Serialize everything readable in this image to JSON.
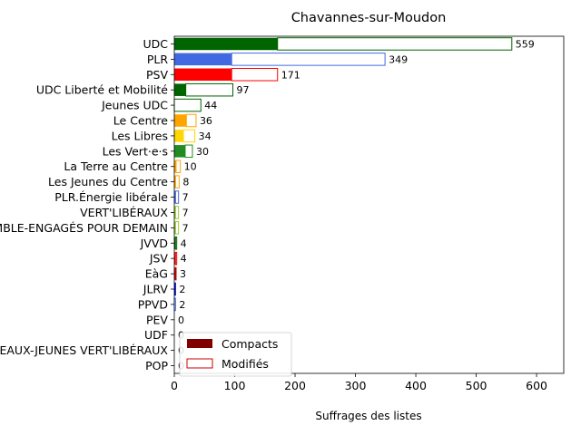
{
  "chart_data": {
    "type": "bar",
    "orientation": "horizontal",
    "title": "Chavannes-sur-Moudon",
    "xlabel": "Suffrages des listes",
    "ylabel": "",
    "xlim": [
      0,
      645
    ],
    "xticks": [
      0,
      100,
      200,
      300,
      400,
      500,
      600
    ],
    "grid": false,
    "legend_position": "lower-left",
    "legend": [
      {
        "label": "Compacts",
        "style": "filled",
        "color": "#800000"
      },
      {
        "label": "Modifiés",
        "style": "outline",
        "color": "#cc0000"
      }
    ],
    "categories": [
      "UDC",
      "PLR",
      "PSV",
      "UDC Liberté et Mobilité",
      "Jeunes UDC",
      "Le Centre",
      "Les Libres",
      "Les Vert·e·s",
      "La Terre au Centre",
      "Les Jeunes du Centre",
      "PLR.Énergie libérale",
      "VERT'LIBÉRAUX",
      "ENSEMBLE-ENGAGÉS POUR DEMAIN",
      "JVVD",
      "JSV",
      "EàG",
      "JLRV",
      "PPVD",
      "PEV",
      "UDF",
      "LES NOUVEAUX-JEUNES VERT'LIBÉRAUX",
      "POP"
    ],
    "series": [
      {
        "name": "Compacts",
        "values": [
          171,
          95,
          95,
          19,
          0,
          20,
          15,
          18,
          3,
          2,
          2,
          2,
          2,
          2,
          2,
          2,
          1,
          0,
          0,
          0,
          0,
          0
        ]
      },
      {
        "name": "Modifiés",
        "values": [
          388,
          254,
          76,
          78,
          44,
          16,
          19,
          12,
          7,
          6,
          5,
          5,
          5,
          2,
          2,
          1,
          1,
          2,
          0,
          0,
          0,
          0
        ]
      }
    ],
    "totals": [
      559,
      349,
      171,
      97,
      44,
      36,
      34,
      30,
      10,
      8,
      7,
      7,
      7,
      4,
      4,
      3,
      2,
      2,
      0,
      0,
      0,
      0
    ],
    "colors": [
      "#006400",
      "#4169e1",
      "#ff0000",
      "#006400",
      "#006400",
      "#ffa500",
      "#ffd700",
      "#228b22",
      "#ffa500",
      "#ffa500",
      "#4169e1",
      "#9acd32",
      "#9acd32",
      "#006400",
      "#ff0000",
      "#cc0000",
      "#0000cd",
      "#4169e1",
      "#ffd700",
      "#4169e1",
      "#9acd32",
      "#cc0000"
    ]
  }
}
